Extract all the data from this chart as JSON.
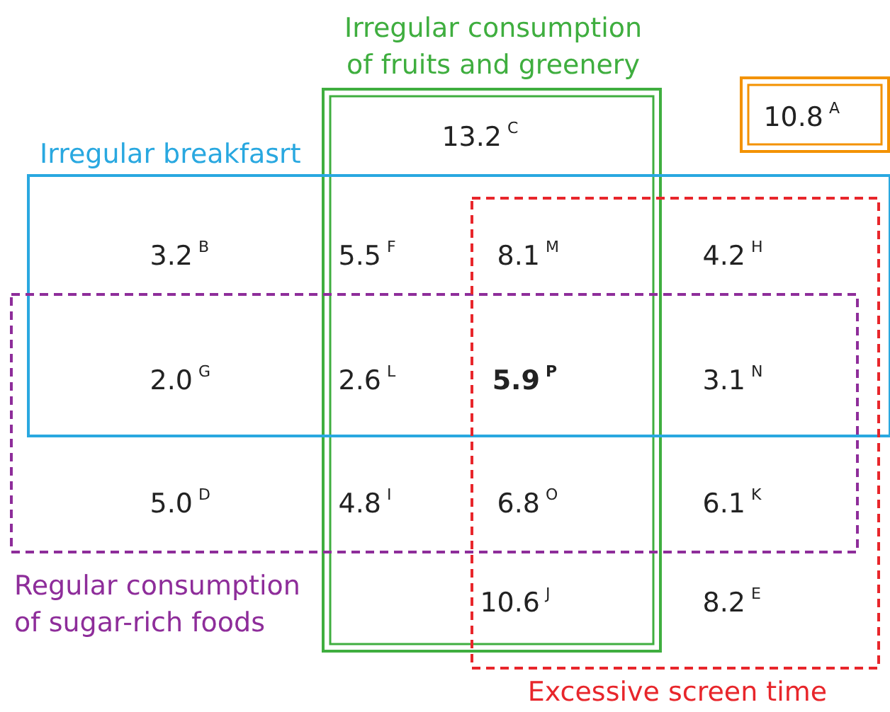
{
  "chart_data": {
    "type": "other",
    "categories": [
      "A",
      "B",
      "C",
      "D",
      "E",
      "F",
      "G",
      "H",
      "I",
      "J",
      "K",
      "L",
      "M",
      "N",
      "O",
      "P"
    ],
    "values": [
      10.8,
      3.2,
      13.2,
      5.0,
      8.2,
      5.5,
      2.0,
      4.2,
      4.8,
      10.6,
      6.1,
      2.6,
      8.1,
      3.1,
      6.8,
      5.9
    ],
    "value_labels": [
      "10.8",
      "3.2",
      "13.2",
      "5.0",
      "8.2",
      "5.5",
      "2.0",
      "4.2",
      "4.8",
      "10.6",
      "6.1",
      "2.6",
      "8.1",
      "3.1",
      "6.8",
      "5.9"
    ],
    "annotations": [
      "Irregular consumption\nof fruits and greenery",
      "Irregular breakfasrt",
      "Regular consumption\nof sugar-rich foods",
      "Excessive screen time"
    ]
  }
}
